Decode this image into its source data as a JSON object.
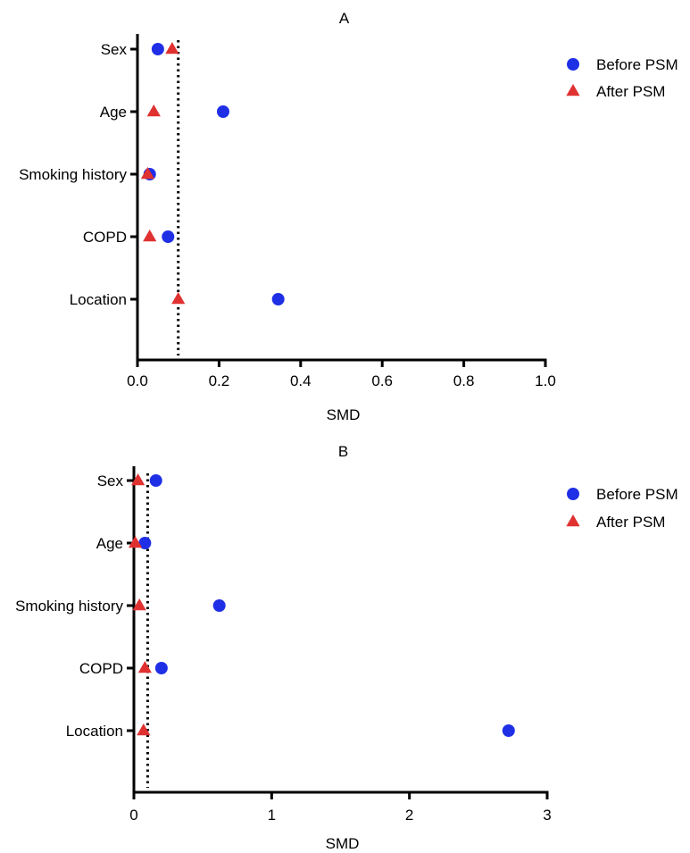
{
  "chart_data": [
    {
      "type": "scatter",
      "title": "A",
      "xlabel": "SMD",
      "ylabel": "",
      "xlim": [
        0,
        1.0
      ],
      "xticks": [
        "0.0",
        "0.2",
        "0.4",
        "0.6",
        "0.8",
        "1.0"
      ],
      "xtick_values": [
        0,
        0.2,
        0.4,
        0.6,
        0.8,
        1.0
      ],
      "categories": [
        "Sex",
        "Age",
        "Smoking history",
        "COPD",
        "Location"
      ],
      "threshold": 0.1,
      "series": [
        {
          "name": "Before PSM",
          "marker": "circle",
          "color": "#1f2fe6",
          "values": [
            0.05,
            0.21,
            0.03,
            0.075,
            0.345
          ]
        },
        {
          "name": "After PSM",
          "marker": "triangle",
          "color": "#e03131",
          "values": [
            0.085,
            0.04,
            0.025,
            0.03,
            0.1
          ]
        }
      ],
      "legend_position": "top-right",
      "grid": false
    },
    {
      "type": "scatter",
      "title": "B",
      "xlabel": "SMD",
      "ylabel": "",
      "xlim": [
        0,
        3
      ],
      "xticks": [
        "0",
        "1",
        "2",
        "3"
      ],
      "xtick_values": [
        0,
        1,
        2,
        3
      ],
      "categories": [
        "Sex",
        "Age",
        "Smoking history",
        "COPD",
        "Location"
      ],
      "threshold": 0.1,
      "series": [
        {
          "name": "Before PSM",
          "marker": "circle",
          "color": "#1f2fe6",
          "values": [
            0.16,
            0.08,
            0.62,
            0.2,
            2.72
          ]
        },
        {
          "name": "After PSM",
          "marker": "triangle",
          "color": "#e03131",
          "values": [
            0.03,
            0.01,
            0.04,
            0.08,
            0.07
          ]
        }
      ],
      "legend_position": "top-right",
      "grid": false
    }
  ]
}
